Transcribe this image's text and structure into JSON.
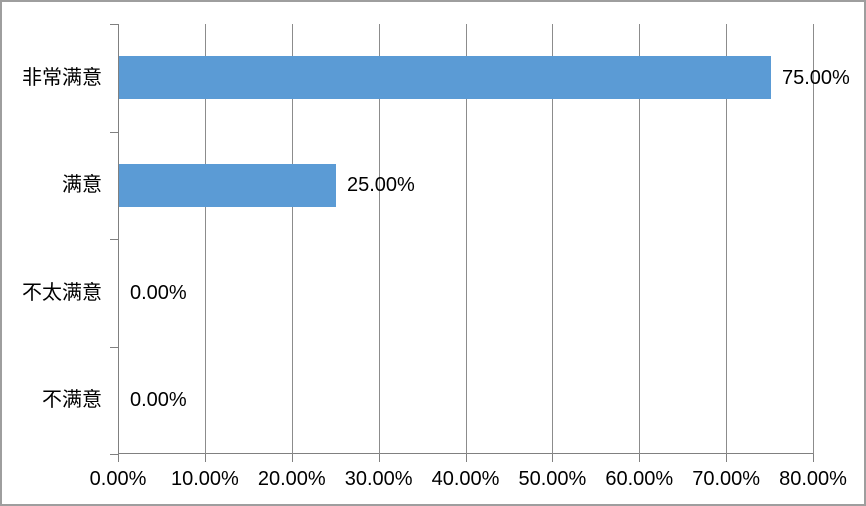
{
  "chart_data": {
    "type": "bar",
    "orientation": "horizontal",
    "title": "",
    "xlabel": "",
    "ylabel": "",
    "categories": [
      "非常满意",
      "满意",
      "不太满意",
      "不满意"
    ],
    "values": [
      75,
      25,
      0,
      0
    ],
    "value_labels": [
      "75.00%",
      "25.00%",
      "0.00%",
      "0.00%"
    ],
    "x_ticks": [
      "0.00%",
      "10.00%",
      "20.00%",
      "30.00%",
      "40.00%",
      "50.00%",
      "60.00%",
      "70.00%",
      "80.00%"
    ],
    "x_tick_values": [
      0,
      10,
      20,
      30,
      40,
      50,
      60,
      70,
      80
    ],
    "xlim": [
      0,
      80
    ],
    "grid": true,
    "legend": false,
    "colors": {
      "bar": "#5B9BD5",
      "gridline": "#8C8C8C",
      "axis": "#808080",
      "text": "#000000",
      "border": "#9E9E9E",
      "background": "#FFFFFF"
    }
  }
}
